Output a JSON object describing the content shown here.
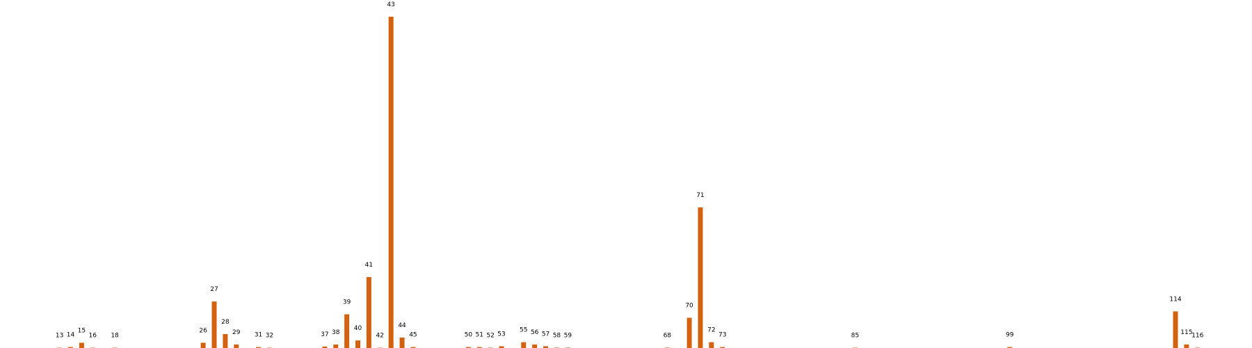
{
  "chart_data": {
    "type": "bar",
    "title": "",
    "xlabel": "",
    "ylabel": "",
    "grid": false,
    "ylim": [
      0,
      28.5
    ],
    "bar_color": "#d2620f",
    "categories": [
      "13",
      "14",
      "15",
      "16",
      "18",
      "26",
      "27",
      "28",
      "29",
      "31",
      "32",
      "37",
      "38",
      "39",
      "40",
      "41",
      "42",
      "43",
      "44",
      "45",
      "50",
      "51",
      "52",
      "53",
      "55",
      "56",
      "57",
      "58",
      "59",
      "68",
      "70",
      "71",
      "72",
      "73",
      "85",
      "99",
      "114",
      "115",
      "116"
    ],
    "values": [
      0.02,
      0.08,
      0.45,
      0.02,
      0.02,
      0.45,
      4.0,
      1.2,
      0.3,
      0.08,
      0.02,
      0.12,
      0.3,
      2.9,
      0.65,
      6.1,
      0.02,
      28.5,
      0.9,
      0.08,
      0.08,
      0.08,
      0.02,
      0.15,
      0.5,
      0.3,
      0.15,
      0.02,
      0.02,
      0.02,
      2.6,
      12.1,
      0.5,
      0.08,
      0.02,
      0.08,
      3.15,
      0.3,
      0.02
    ]
  }
}
